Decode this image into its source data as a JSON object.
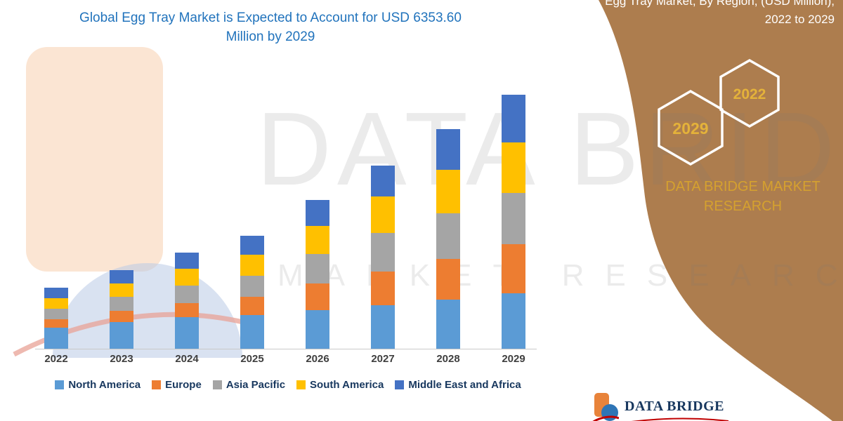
{
  "title": {
    "line1": "Global Egg Tray Market is Expected to Account for USD 6353.60",
    "line2": "Million by 2029"
  },
  "chart_data": {
    "type": "bar",
    "stacked": true,
    "title": "Global Egg Tray Market is Expected to Account for USD 6353.60 Million by 2029",
    "unit": "USD Million",
    "categories": [
      "2022",
      "2023",
      "2024",
      "2025",
      "2026",
      "2027",
      "2028",
      "2029"
    ],
    "series": [
      {
        "name": "North America",
        "color": "#5B9BD5",
        "values": [
          527,
          667,
          790,
          842,
          965,
          1088,
          1229,
          1386
        ]
      },
      {
        "name": "Europe",
        "color": "#ED7D31",
        "values": [
          211,
          281,
          351,
          456,
          667,
          842,
          1018,
          1230
        ]
      },
      {
        "name": "Asia Pacific",
        "color": "#A5A5A5",
        "values": [
          263,
          351,
          439,
          527,
          737,
          965,
          1141,
          1281
        ]
      },
      {
        "name": "South America",
        "color": "#FFC000",
        "values": [
          263,
          333,
          421,
          527,
          702,
          913,
          1088,
          1263
        ]
      },
      {
        "name": "Middle East and Africa",
        "color": "#4472C4",
        "values": [
          263,
          333,
          404,
          474,
          649,
          772,
          1018,
          1193
        ]
      }
    ],
    "totals": [
      1527,
      1965,
      2405,
      2826,
      3720,
      4580,
      5494,
      6353.6
    ],
    "ylim": [
      0,
      6353.6
    ],
    "gridlines": false,
    "legend_position": "bottom"
  },
  "watermark": {
    "line1": "DATA BRIDGE",
    "line2": "MARKET RESEARCH"
  },
  "side_panel": {
    "panel_color": "#AD7D4E",
    "partial_top_line": "Egg Tray Market, By Region, (USD Million),",
    "period_line": "2022 to 2029",
    "hexagon_back_year": "2022",
    "hexagon_front_year": "2029",
    "brand_line1": "DATA BRIDGE MARKET",
    "brand_line2": "RESEARCH"
  },
  "footer": {
    "brand": "DATA BRIDGE"
  }
}
